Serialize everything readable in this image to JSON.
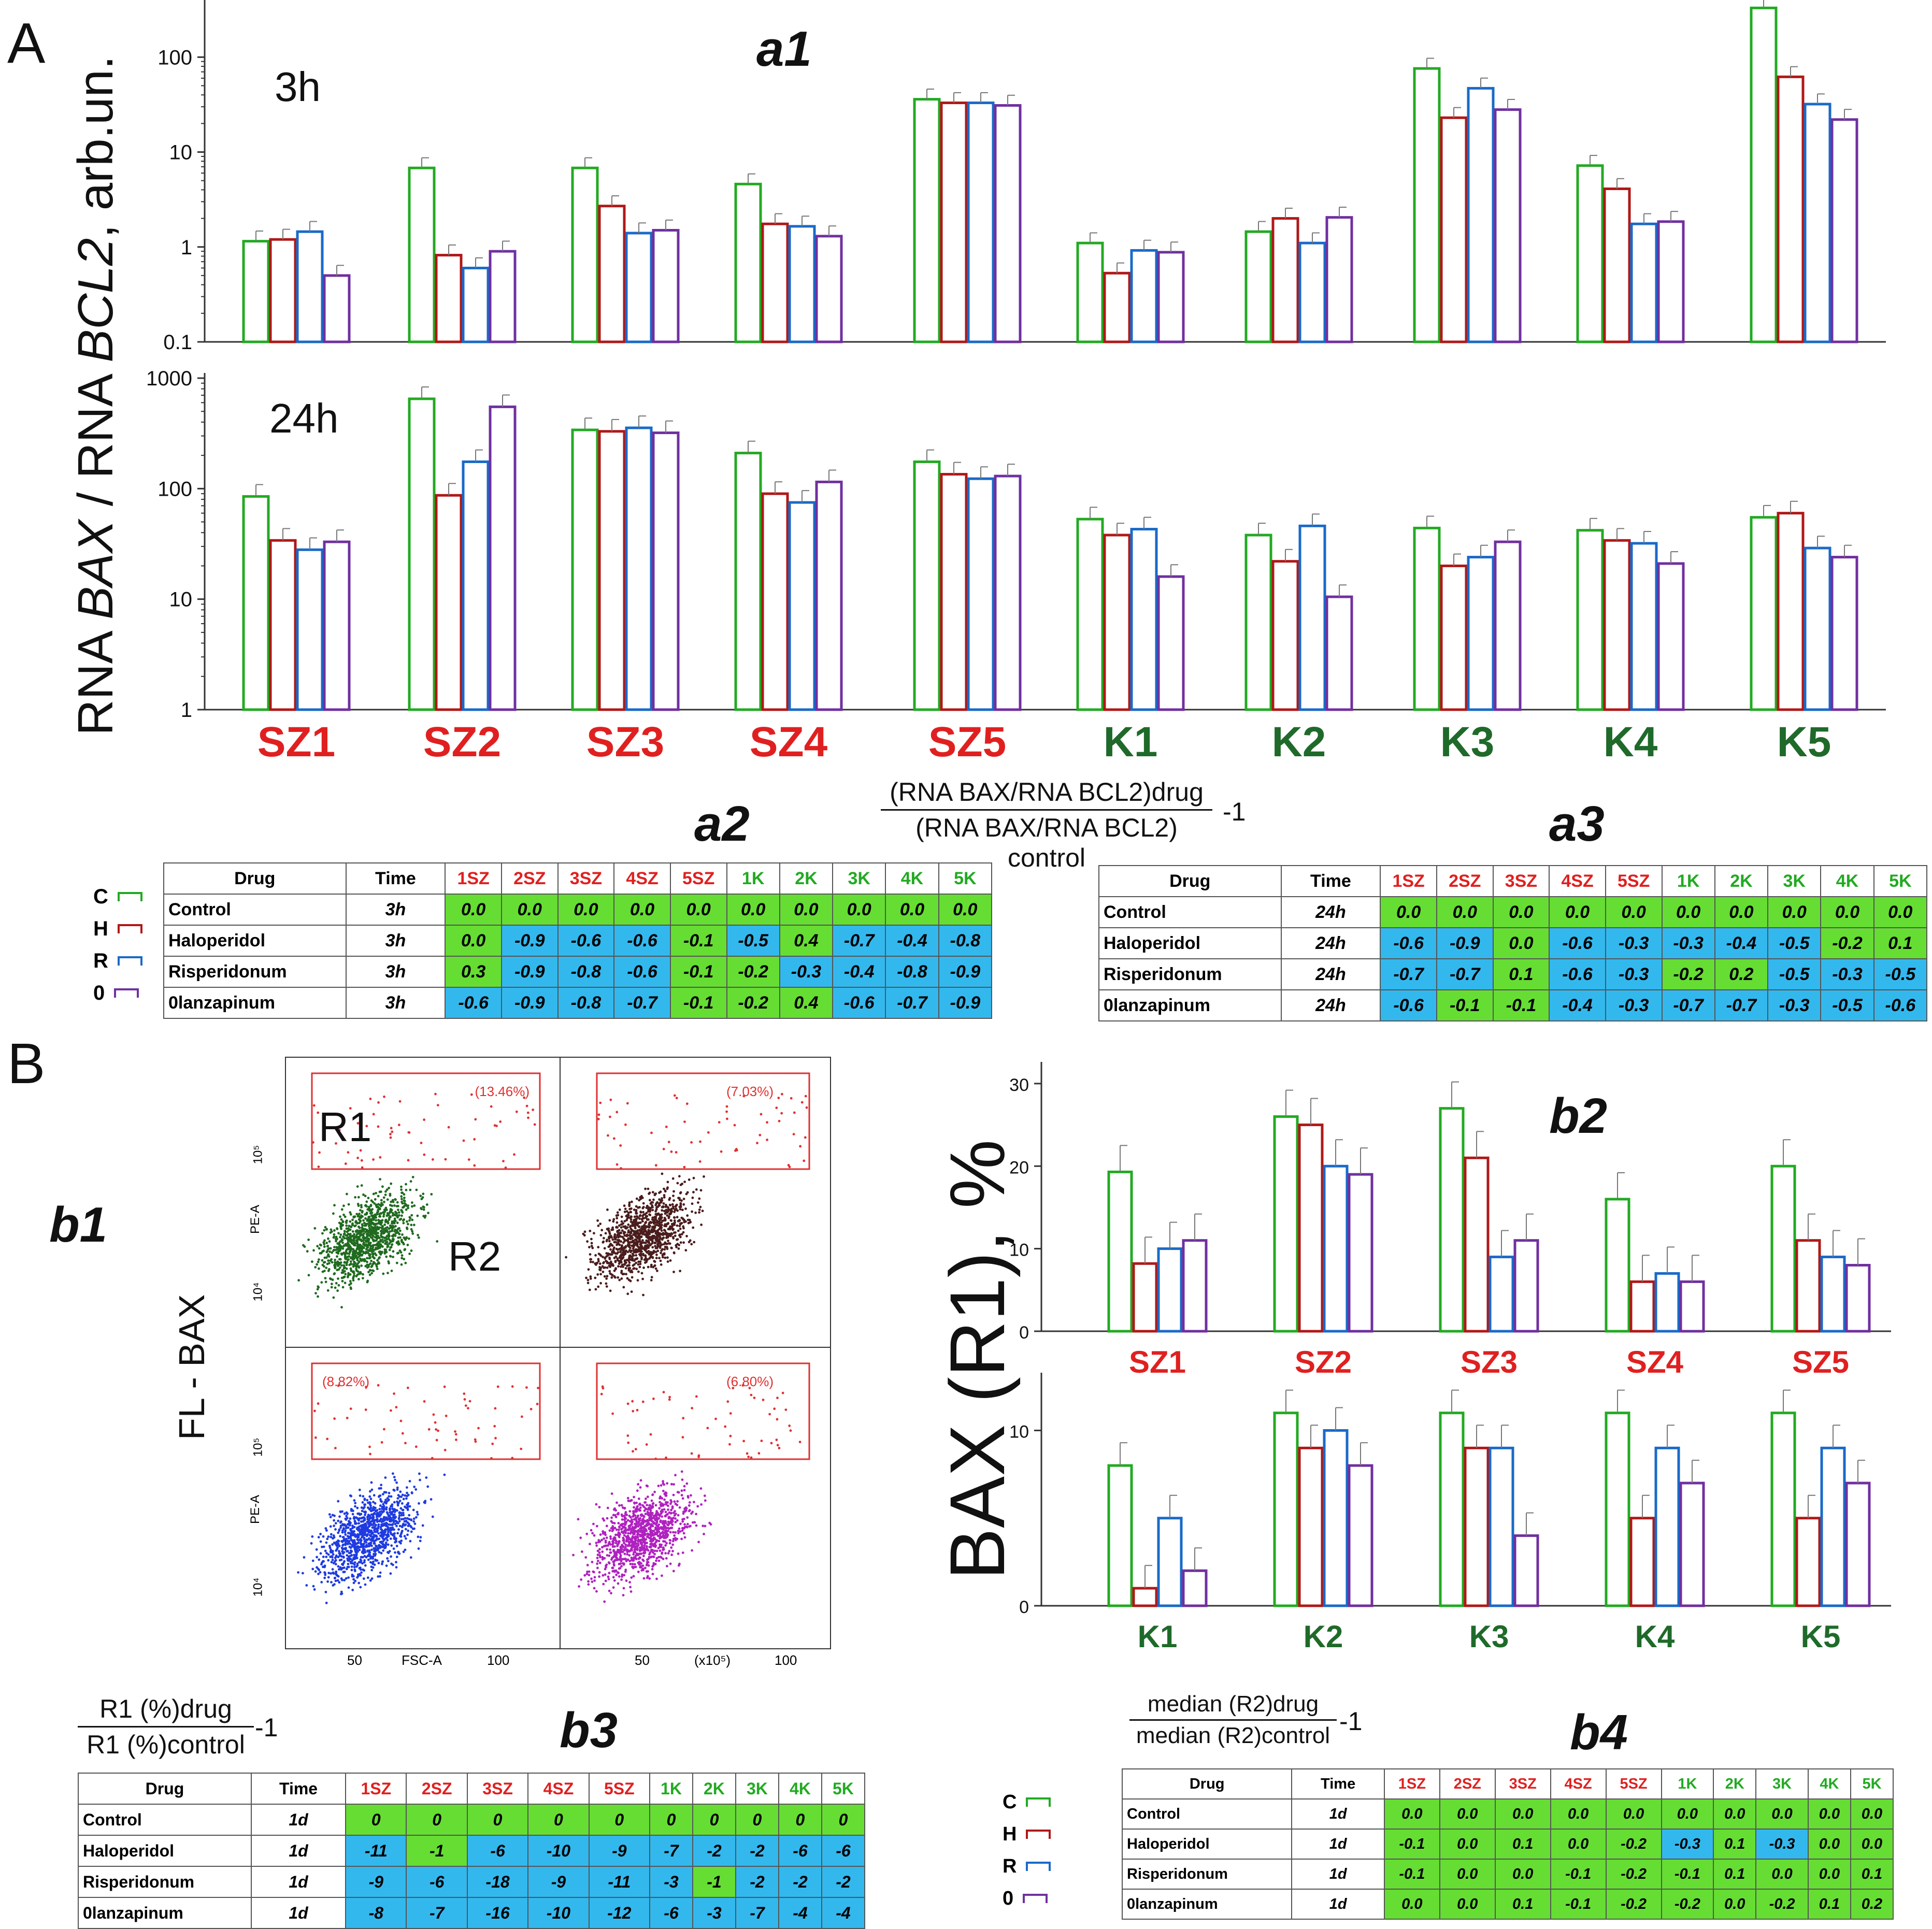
{
  "panels": {
    "A": "A",
    "B": "B",
    "a1": "a1",
    "a2": "a2",
    "a3": "a3",
    "b1": "b1",
    "b2": "b2",
    "b3": "b3",
    "b4": "b4"
  },
  "colors": {
    "control": "#22aa22",
    "haloperidol": "#b01818",
    "risperidonum": "#1a6ac8",
    "olanzapinum": "#7030a0"
  },
  "chart_data": [
    {
      "id": "a1-3h",
      "type": "bar",
      "scale": "log",
      "label": "3h",
      "categories": [
        "SZ1",
        "SZ2",
        "SZ3",
        "SZ4",
        "SZ5",
        "K1",
        "K2",
        "K3",
        "K4",
        "K5"
      ],
      "yticks": [
        "0.1",
        "1",
        "10",
        "100"
      ],
      "ylim": [
        0.1,
        400
      ],
      "ylabel": "RNA BAX / RNA BCL2, arb.un.",
      "series": [
        {
          "name": "Control",
          "values": [
            1.15,
            6.8,
            6.8,
            4.6,
            36,
            1.1,
            1.45,
            76,
            7.2,
            330
          ]
        },
        {
          "name": "Haloperidol",
          "values": [
            1.2,
            0.82,
            2.7,
            1.75,
            33,
            0.53,
            2.0,
            23,
            4.1,
            62
          ]
        },
        {
          "name": "Risperidonum",
          "values": [
            1.45,
            0.6,
            1.4,
            1.65,
            33,
            0.92,
            1.1,
            47,
            1.75,
            32
          ]
        },
        {
          "name": "Olanzapinum",
          "values": [
            0.5,
            0.9,
            1.5,
            1.3,
            31,
            0.88,
            2.05,
            28,
            1.85,
            22
          ]
        }
      ]
    },
    {
      "id": "a1-24h",
      "type": "bar",
      "scale": "log",
      "label": "24h",
      "categories": [
        "SZ1",
        "SZ2",
        "SZ3",
        "SZ4",
        "SZ5",
        "K1",
        "K2",
        "K3",
        "K4",
        "K5"
      ],
      "yticks": [
        "1",
        "10",
        "100",
        "1000"
      ],
      "ylim": [
        1,
        1000
      ],
      "series": [
        {
          "name": "Control",
          "values": [
            85,
            650,
            340,
            210,
            175,
            53,
            38,
            44,
            42,
            55
          ]
        },
        {
          "name": "Haloperidol",
          "values": [
            34,
            87,
            330,
            90,
            135,
            38,
            22,
            20,
            34,
            60
          ]
        },
        {
          "name": "Risperidonum",
          "values": [
            28,
            175,
            355,
            75,
            123,
            43,
            46,
            24,
            32,
            29
          ]
        },
        {
          "name": "Olanzapinum",
          "values": [
            33,
            550,
            320,
            115,
            130,
            16,
            10.5,
            33,
            21,
            24
          ]
        }
      ]
    },
    {
      "id": "b2-sz",
      "type": "bar",
      "scale": "linear",
      "categories": [
        "SZ1",
        "SZ2",
        "SZ3",
        "SZ4",
        "SZ5"
      ],
      "yticks": [
        "0",
        "10",
        "20",
        "30"
      ],
      "ylim": [
        0,
        32
      ],
      "ylabel": "BAX (R1), %",
      "series": [
        {
          "name": "Control",
          "values": [
            19.3,
            26,
            27,
            16,
            20
          ]
        },
        {
          "name": "Haloperidol",
          "values": [
            8.2,
            25,
            21,
            6,
            11
          ]
        },
        {
          "name": "Risperidonum",
          "values": [
            10,
            20,
            9,
            7,
            9
          ]
        },
        {
          "name": "Olanzapinum",
          "values": [
            11,
            19,
            11,
            6,
            8
          ]
        }
      ]
    },
    {
      "id": "b2-k",
      "type": "bar",
      "scale": "linear",
      "categories": [
        "K1",
        "K2",
        "K3",
        "K4",
        "K5"
      ],
      "yticks": [
        "0",
        "10"
      ],
      "ylim": [
        0,
        13
      ],
      "series": [
        {
          "name": "Control",
          "values": [
            8,
            11,
            11,
            11,
            11
          ]
        },
        {
          "name": "Haloperidol",
          "values": [
            1,
            9,
            9,
            5,
            5
          ]
        },
        {
          "name": "Risperidonum",
          "values": [
            5,
            10,
            9,
            9,
            9
          ]
        },
        {
          "name": "Olanzapinum",
          "values": [
            2,
            8,
            4,
            7,
            7
          ]
        }
      ]
    }
  ],
  "formula_a": {
    "num": "(RNA BAX/RNA BCL2)drug",
    "den": "(RNA BAX/RNA BCL2) control",
    "suffix": "-1"
  },
  "formula_b3": {
    "num": "R1 (%)drug",
    "den": "R1 (%)control",
    "suffix": "-1"
  },
  "formula_b4": {
    "num": "median (R2)drug",
    "den": "median (R2)control",
    "suffix": "-1"
  },
  "legend": [
    {
      "letter": "C"
    },
    {
      "letter": "H"
    },
    {
      "letter": "R"
    },
    {
      "letter": "0"
    }
  ],
  "table_headers": {
    "drug": "Drug",
    "time": "Time",
    "cols": [
      "1SZ",
      "2SZ",
      "3SZ",
      "4SZ",
      "5SZ",
      "1K",
      "2K",
      "3K",
      "4K",
      "5K"
    ]
  },
  "table_a2": {
    "rows": [
      {
        "drug": "Control",
        "time": "3h",
        "vals": [
          "0.0",
          "0.0",
          "0.0",
          "0.0",
          "0.0",
          "0.0",
          "0.0",
          "0.0",
          "0.0",
          "0.0"
        ],
        "cls": "gggggggggg"
      },
      {
        "drug": "Haloperidol",
        "time": "3h",
        "vals": [
          "0.0",
          "-0.9",
          "-0.6",
          "-0.6",
          "-0.1",
          "-0.5",
          "0.4",
          "-0.7",
          "-0.4",
          "-0.8"
        ],
        "cls": "gbbbgbgbbb"
      },
      {
        "drug": "Risperidonum",
        "time": "3h",
        "vals": [
          "0.3",
          "-0.9",
          "-0.8",
          "-0.6",
          "-0.1",
          "-0.2",
          "-0.3",
          "-0.4",
          "-0.8",
          "-0.9"
        ],
        "cls": "gbbbggbbbb"
      },
      {
        "drug": "0lanzapinum",
        "time": "3h",
        "vals": [
          "-0.6",
          "-0.9",
          "-0.8",
          "-0.7",
          "-0.1",
          "-0.2",
          "0.4",
          "-0.6",
          "-0.7",
          "-0.9"
        ],
        "cls": "bbbbgggbbb"
      }
    ]
  },
  "table_a3": {
    "rows": [
      {
        "drug": "Control",
        "time": "24h",
        "vals": [
          "0.0",
          "0.0",
          "0.0",
          "0.0",
          "0.0",
          "0.0",
          "0.0",
          "0.0",
          "0.0",
          "0.0"
        ],
        "cls": "gggggggggg"
      },
      {
        "drug": "Haloperidol",
        "time": "24h",
        "vals": [
          "-0.6",
          "-0.9",
          "0.0",
          "-0.6",
          "-0.3",
          "-0.3",
          "-0.4",
          "-0.5",
          "-0.2",
          "0.1"
        ],
        "cls": "bbgbbbbbgg"
      },
      {
        "drug": "Risperidonum",
        "time": "24h",
        "vals": [
          "-0.7",
          "-0.7",
          "0.1",
          "-0.6",
          "-0.3",
          "-0.2",
          "0.2",
          "-0.5",
          "-0.3",
          "-0.5"
        ],
        "cls": "bbgbbggbbb"
      },
      {
        "drug": "0lanzapinum",
        "time": "24h",
        "vals": [
          "-0.6",
          "-0.1",
          "-0.1",
          "-0.4",
          "-0.3",
          "-0.7",
          "-0.7",
          "-0.3",
          "-0.5",
          "-0.6"
        ],
        "cls": "bggbbbbbbb"
      }
    ]
  },
  "table_b3": {
    "rows": [
      {
        "drug": "Control",
        "time": "1d",
        "vals": [
          "0",
          "0",
          "0",
          "0",
          "0",
          "0",
          "0",
          "0",
          "0",
          "0"
        ],
        "cls": "gggggggggg"
      },
      {
        "drug": "Haloperidol",
        "time": "1d",
        "vals": [
          "-11",
          "-1",
          "-6",
          "-10",
          "-9",
          "-7",
          "-2",
          "-2",
          "-6",
          "-6"
        ],
        "cls": "bgbbbbbbbb"
      },
      {
        "drug": "Risperidonum",
        "time": "1d",
        "vals": [
          "-9",
          "-6",
          "-18",
          "-9",
          "-11",
          "-3",
          "-1",
          "-2",
          "-2",
          "-2"
        ],
        "cls": "bbbbbbgbbb"
      },
      {
        "drug": "0lanzapinum",
        "time": "1d",
        "vals": [
          "-8",
          "-7",
          "-16",
          "-10",
          "-12",
          "-6",
          "-3",
          "-7",
          "-4",
          "-4"
        ],
        "cls": "bbbbbbbbbb"
      }
    ]
  },
  "table_b4": {
    "rows": [
      {
        "drug": "Control",
        "time": "1d",
        "vals": [
          "0.0",
          "0.0",
          "0.0",
          "0.0",
          "0.0",
          "0.0",
          "0.0",
          "0.0",
          "0.0",
          "0.0"
        ],
        "cls": "gggggggggg"
      },
      {
        "drug": "Haloperidol",
        "time": "1d",
        "vals": [
          "-0.1",
          "0.0",
          "0.1",
          "0.0",
          "-0.2",
          "-0.3",
          "0.1",
          "-0.3",
          "0.0",
          "0.0"
        ],
        "cls": "gggggbgbgg"
      },
      {
        "drug": "Risperidonum",
        "time": "1d",
        "vals": [
          "-0.1",
          "0.0",
          "0.0",
          "-0.1",
          "-0.2",
          "-0.1",
          "0.1",
          "0.0",
          "0.0",
          "0.1"
        ],
        "cls": "gggggggggg"
      },
      {
        "drug": "0lanzapinum",
        "time": "1d",
        "vals": [
          "0.0",
          "0.0",
          "0.1",
          "-0.1",
          "-0.2",
          "-0.2",
          "0.0",
          "-0.2",
          "0.1",
          "0.2"
        ],
        "cls": "gggggggggg"
      }
    ]
  },
  "scatter": {
    "ylabel": "FL - BAX",
    "plots": [
      {
        "pct": "(13.46%)",
        "color": "#1f6a1f"
      },
      {
        "pct": "(7.03%)",
        "color": "#4a1c1c"
      },
      {
        "pct": "(8.82%)",
        "color": "#1f3be0"
      },
      {
        "pct": "(6.80%)",
        "color": "#b020c0"
      }
    ],
    "r1": "R1",
    "r2": "R2",
    "pe": "PE-A",
    "fsc": "FSC-A",
    "x5": "(x10⁵)",
    "tick105": "10⁵",
    "tick104": "10⁴",
    "x50": "50",
    "x100": "100"
  }
}
